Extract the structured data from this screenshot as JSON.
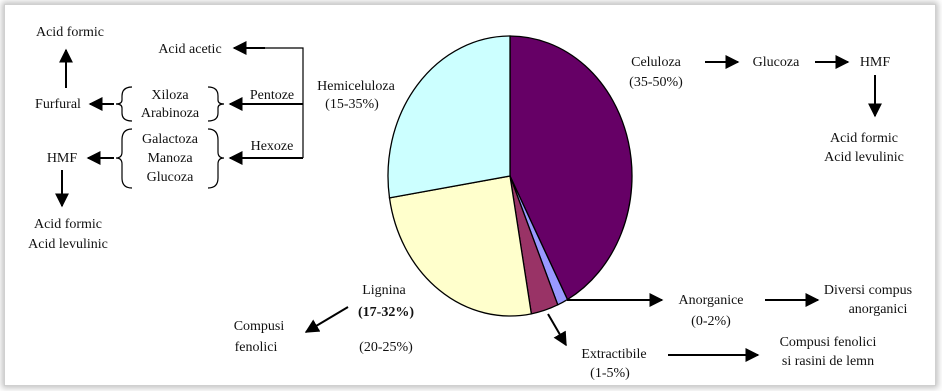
{
  "pie": {
    "slices": [
      {
        "name": "Celuloza",
        "value": 42.2,
        "color": "#660066"
      },
      {
        "name": "Anorganice",
        "value": 1.4,
        "color": "#9999ff"
      },
      {
        "name": "Extractibile",
        "value": 3.6,
        "color": "#993366"
      },
      {
        "name": "Lignina",
        "value": 25.3,
        "color": "#ffffcc"
      },
      {
        "name": "Hemiceluloza",
        "value": 27.5,
        "color": "#ccffff"
      }
    ],
    "outline_color": "#000000"
  },
  "left": {
    "acid_formic_top": "Acid formic",
    "acid_acetic": "Acid acetic",
    "hemiceluloza": "Hemiceluloza",
    "hemiceluloza_range": "(15-35%)",
    "pentoze": "Pentoze",
    "hexoze": "Hexoze",
    "furfural": "Furfural",
    "xiloza": "Xiloza",
    "arabinoza": "Arabinoza",
    "galactoza": "Galactoza",
    "manoza": "Manoza",
    "glucoza": "Glucoza",
    "hmf": "HMF",
    "acid_formic_bottom": "Acid formic",
    "acid_levulinic_bottom": "Acid levulinic"
  },
  "right": {
    "celuloza": "Celuloza",
    "celuloza_range": "(35-50%)",
    "glucoza": "Glucoza",
    "hmf": "HMF",
    "acid_formic": "Acid formic",
    "acid_levulinic": "Acid levulinic",
    "anorganice": "Anorganice",
    "anorganice_range": "(0-2%)",
    "diversi_compus": "Diversi compus",
    "anorganici": "anorganici",
    "extractibile": "Extractibile",
    "extractibile_range": "(1-5%)",
    "compusi_fenolici": "Compusi fenolici",
    "rasini": "si rasini de lemn"
  },
  "bottom": {
    "lignina": "Lignina",
    "lignina_range1": "(17-32%)",
    "lignina_range2": "(20-25%)",
    "compusi": "Compusi",
    "fenolici": "fenolici"
  }
}
